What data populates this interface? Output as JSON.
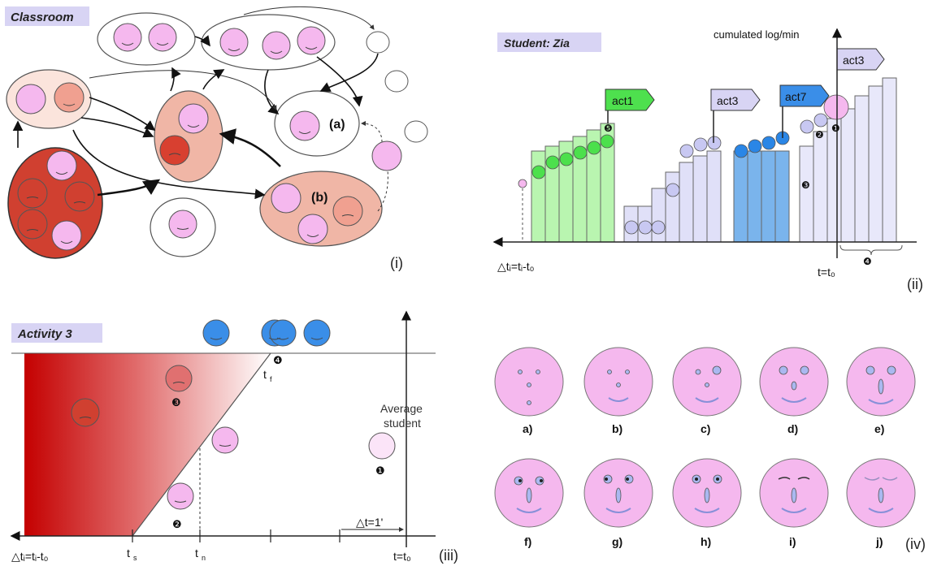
{
  "panel_i": {
    "title": "Classroom",
    "label_a": "(a)",
    "label_b": "(b)",
    "caption": "(i)"
  },
  "panel_ii": {
    "title": "Student: Zia",
    "ylabel": "cumulated log/min",
    "flags": [
      "act1",
      "act3",
      "act7",
      "act3"
    ],
    "xleft": "△tᵢ=tᵢ-t₀",
    "xright": "t=t₀",
    "caption": "(ii)",
    "markers": [
      "❶",
      "❷",
      "❸",
      "❹",
      "❺"
    ]
  },
  "panel_iii": {
    "title": "Activity 3",
    "t_f": "t",
    "t_f_sub": "f",
    "t_s": "t",
    "t_s_sub": "s",
    "t_n": "t",
    "t_n_sub": "n",
    "xleft": "△tᵢ=tᵢ-t₀",
    "xright": "t=t₀",
    "delta": "△t=1'",
    "avg1": "Average",
    "avg2": "student",
    "caption": "(iii)",
    "markers": [
      "❶",
      "❷",
      "❸",
      "❹"
    ]
  },
  "panel_iv": {
    "faces": [
      "a)",
      "b)",
      "c)",
      "d)",
      "e)",
      "f)",
      "g)",
      "h)",
      "i)",
      "j)"
    ],
    "caption": "(iv)"
  },
  "colors": {
    "face_pink": "#f5b8ee",
    "red_dark": "#d0382a",
    "salmon": "#f0b6a6",
    "green": "#b9f5b0",
    "lavender": "#e0e0f8",
    "blue": "#3a8ee8",
    "tag_bg": "#d8d4f4"
  }
}
